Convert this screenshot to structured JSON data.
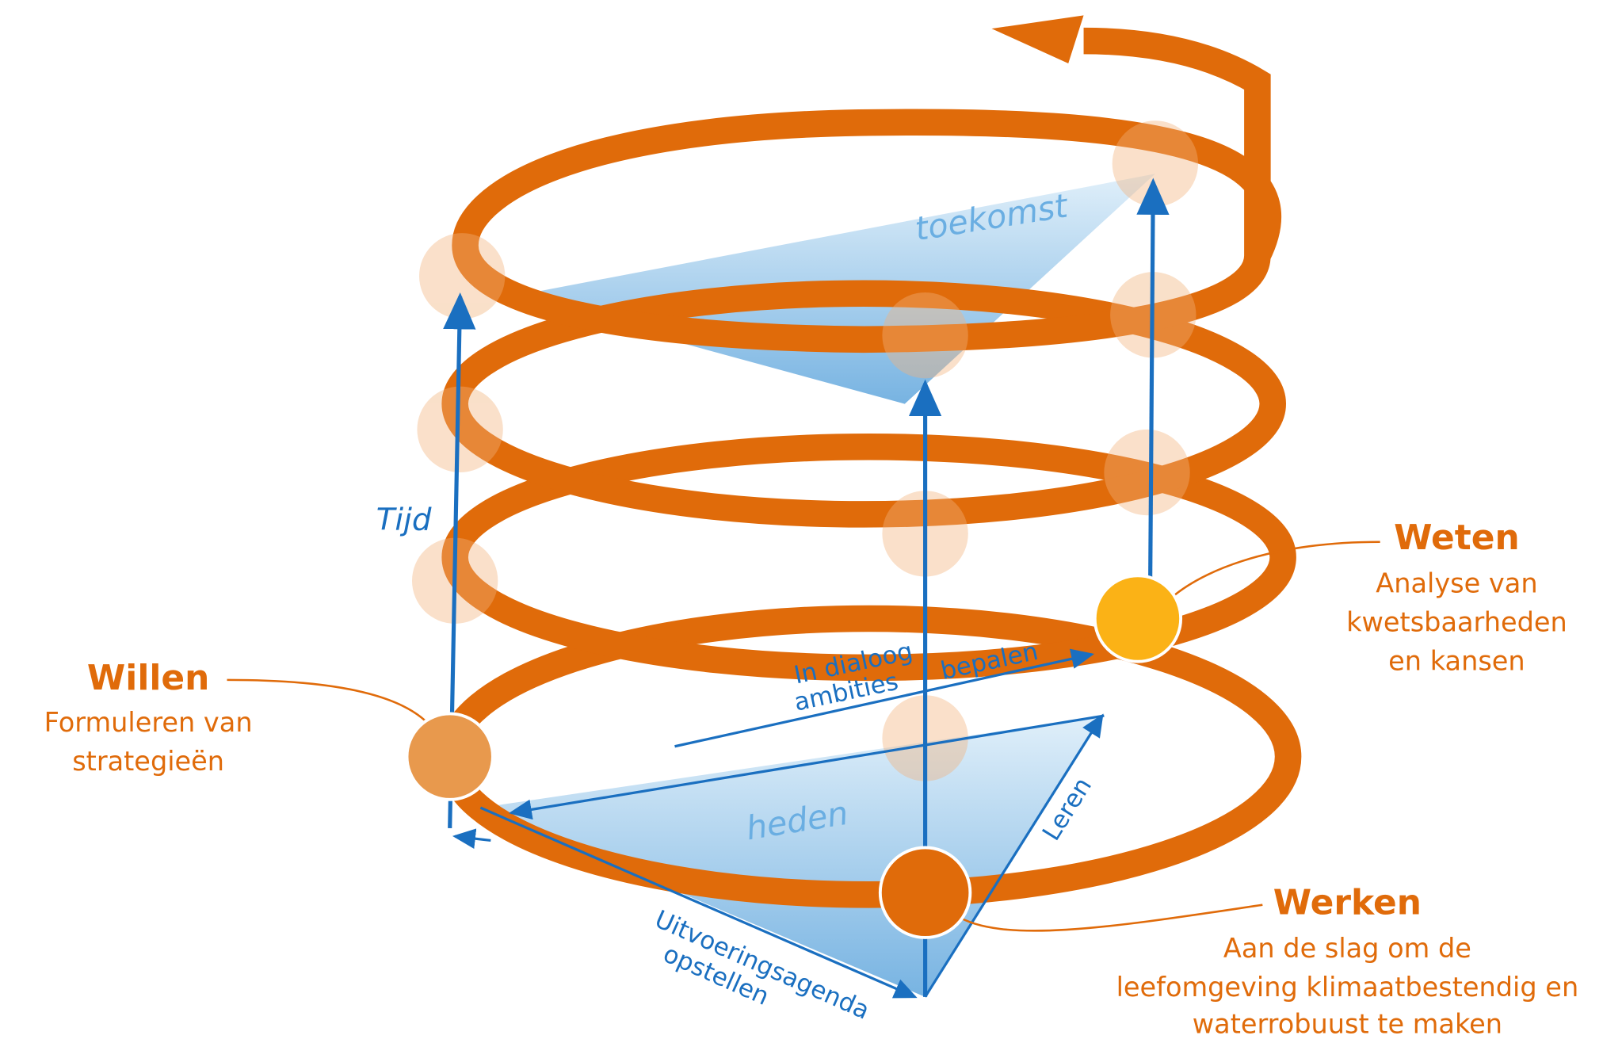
{
  "nodes": [
    {
      "title": "Willen",
      "lines": [
        "Formuleren van",
        "strategieën"
      ]
    },
    {
      "title": "Weten",
      "lines": [
        "Analyse van",
        "kwetsbaarheden",
        "en kansen"
      ]
    },
    {
      "title": "Werken",
      "lines": [
        "Aan de slag om de",
        "leefomgeving klimaatbestendig en",
        "waterrobuust te maken"
      ]
    }
  ],
  "labels": {
    "time": "Tijd",
    "future": "toekomst",
    "present": "heden",
    "dialog": [
      "In dialoog",
      "ambities",
      "bepalen"
    ],
    "learn": "Leren",
    "agenda": [
      "Uitvoeringsagenda",
      "opstellen"
    ]
  }
}
